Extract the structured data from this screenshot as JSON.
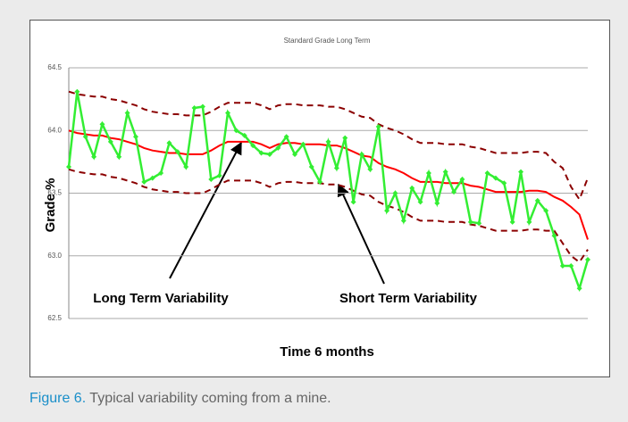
{
  "chart_data": {
    "type": "line",
    "title": "Standard Grade Long Term",
    "y_label": "Grade %",
    "x_label": "Time 6 months",
    "annotations": [
      "Long Term Variability",
      "Short Term Variability"
    ],
    "ylim": [
      62.5,
      64.5
    ],
    "yticks": [
      62.5,
      {
        "value": 63,
        "label": "63.0"
      },
      63.5,
      {
        "value": 64,
        "label": "64.0"
      },
      64.5
    ],
    "grid": true,
    "series": [
      {
        "color": "#8b0000",
        "dashed": true,
        "markers": false,
        "values": [
          64.31,
          64.29,
          64.28,
          64.27,
          64.27,
          64.25,
          64.24,
          64.22,
          64.2,
          64.17,
          64.15,
          64.14,
          64.13,
          64.13,
          64.12,
          64.12,
          64.12,
          64.15,
          64.19,
          64.22,
          64.22,
          64.22,
          64.22,
          64.2,
          64.17,
          64.2,
          64.21,
          64.21,
          64.2,
          64.2,
          64.2,
          64.19,
          64.19,
          64.17,
          64.14,
          64.11,
          64.1,
          64.05,
          64.02,
          64.0,
          63.97,
          63.93,
          63.9,
          63.9,
          63.9,
          63.89,
          63.89,
          63.89,
          63.87,
          63.86,
          63.84,
          63.82,
          63.82,
          63.82,
          63.82,
          63.83,
          63.83,
          63.82,
          63.75,
          63.7,
          63.55,
          63.45,
          63.62
        ]
      },
      {
        "color": "#8b0000",
        "dashed": true,
        "markers": false,
        "values": [
          63.69,
          63.67,
          63.66,
          63.65,
          63.65,
          63.63,
          63.62,
          63.6,
          63.58,
          63.55,
          63.53,
          63.52,
          63.51,
          63.51,
          63.5,
          63.5,
          63.5,
          63.53,
          63.57,
          63.6,
          63.6,
          63.6,
          63.6,
          63.58,
          63.55,
          63.58,
          63.59,
          63.59,
          63.58,
          63.58,
          63.58,
          63.57,
          63.57,
          63.55,
          63.52,
          63.49,
          63.48,
          63.43,
          63.4,
          63.38,
          63.35,
          63.31,
          63.28,
          63.28,
          63.28,
          63.27,
          63.27,
          63.27,
          63.25,
          63.24,
          63.22,
          63.2,
          63.2,
          63.2,
          63.2,
          63.21,
          63.21,
          63.2,
          63.2,
          63.1,
          63.0,
          62.95,
          63.05
        ]
      },
      {
        "color": "#ff0000",
        "dashed": false,
        "markers": false,
        "values": [
          64.0,
          63.98,
          63.97,
          63.96,
          63.96,
          63.94,
          63.93,
          63.91,
          63.89,
          63.86,
          63.84,
          63.83,
          63.82,
          63.82,
          63.81,
          63.81,
          63.81,
          63.84,
          63.88,
          63.91,
          63.91,
          63.91,
          63.91,
          63.89,
          63.86,
          63.89,
          63.9,
          63.9,
          63.89,
          63.89,
          63.89,
          63.88,
          63.88,
          63.86,
          63.83,
          63.8,
          63.79,
          63.74,
          63.71,
          63.69,
          63.66,
          63.62,
          63.59,
          63.59,
          63.59,
          63.58,
          63.58,
          63.58,
          63.56,
          63.55,
          63.53,
          63.51,
          63.51,
          63.51,
          63.51,
          63.52,
          63.52,
          63.51,
          63.47,
          63.44,
          63.39,
          63.33,
          63.13
        ]
      },
      {
        "color": "#33ee33",
        "dashed": false,
        "markers": true,
        "values": [
          63.71,
          64.31,
          63.95,
          63.79,
          64.05,
          63.91,
          63.79,
          64.14,
          63.95,
          63.59,
          63.62,
          63.66,
          63.9,
          63.83,
          63.71,
          64.18,
          64.19,
          63.61,
          63.64,
          64.14,
          64.0,
          63.96,
          63.88,
          63.82,
          63.81,
          63.86,
          63.95,
          63.81,
          63.89,
          63.71,
          63.59,
          63.91,
          63.7,
          63.94,
          63.43,
          63.81,
          63.69,
          64.03,
          63.36,
          63.5,
          63.28,
          63.54,
          63.43,
          63.66,
          63.42,
          63.67,
          63.51,
          63.61,
          63.27,
          63.26,
          63.66,
          63.62,
          63.58,
          63.27,
          63.67,
          63.27,
          63.44,
          63.36,
          63.16,
          62.92,
          62.92,
          62.74,
          62.97
        ]
      }
    ]
  },
  "caption": {
    "label": "Figure 6.",
    "text": "Typical variability coming from a mine."
  }
}
